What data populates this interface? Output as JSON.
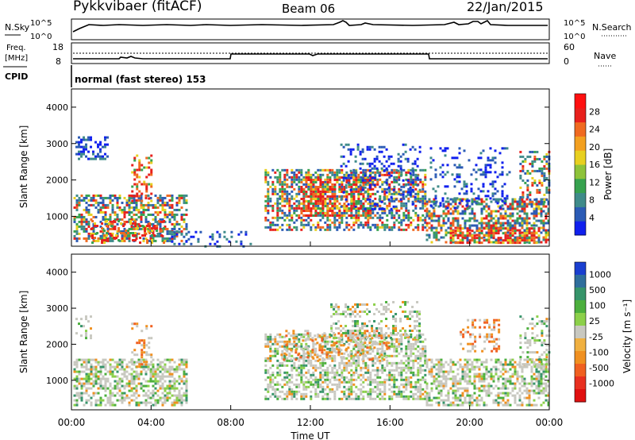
{
  "header": {
    "station": "Pykkvibaer (fitACF)",
    "beam": "Beam 06",
    "date": "22/Jan/2015"
  },
  "noise_panel": {
    "left_label": "N.Sky",
    "right_label": "N.Search",
    "ticks": [
      "10^5",
      "10^0"
    ]
  },
  "freq_panel": {
    "left_label_line1": "Freq.",
    "left_label_line2": "[MHz]",
    "right_label": "Nave",
    "left_ticks": [
      "18",
      "8"
    ],
    "right_ticks": [
      "60",
      "0"
    ]
  },
  "cpid": {
    "label": "CPID",
    "mode": "normal (fast stereo) 153"
  },
  "chart_data": [
    {
      "type": "heatmap",
      "title": "",
      "ylabel": "Slant Range [km]",
      "ylim": [
        180,
        4500
      ],
      "yticks": [
        "1000",
        "2000",
        "3000",
        "4000"
      ],
      "colorbar": {
        "label": "Power [dB]",
        "ticks": [
          "4",
          "8",
          "12",
          "16",
          "20",
          "24",
          "28"
        ],
        "colors": [
          "#1020ee",
          "#2b5bb5",
          "#3f8b8a",
          "#37a24f",
          "#8ec33a",
          "#e8d020",
          "#f3a020",
          "#f06a20",
          "#e8201c",
          "#ff1010"
        ]
      },
      "regions": [
        {
          "x": [
            0.2,
            5.8
          ],
          "y": [
            300,
            1600
          ],
          "level": "mixed"
        },
        {
          "x": [
            9.7,
            17.8
          ],
          "y": [
            600,
            2300
          ],
          "level": "high"
        },
        {
          "x": [
            17.8,
            24.0
          ],
          "y": [
            300,
            2800
          ],
          "level": "mixed"
        }
      ]
    },
    {
      "type": "heatmap",
      "title": "",
      "ylabel": "Slant Range [km]",
      "ylim": [
        180,
        4500
      ],
      "yticks": [
        "1000",
        "2000",
        "3000",
        "4000"
      ],
      "colorbar": {
        "label": "Velocity [m s⁻¹]",
        "ticks": [
          "1000",
          "500",
          "100",
          "25",
          "-25",
          "-100",
          "-500",
          "-1000"
        ],
        "colors": [
          "#1a3fd0",
          "#2f6e9c",
          "#36946a",
          "#4caf3d",
          "#8cd04a",
          "#c8c8c0",
          "#f0b040",
          "#f09020",
          "#f06020",
          "#e83020",
          "#e01010"
        ]
      }
    }
  ],
  "time_axis": {
    "label": "Time UT",
    "ticks": [
      "00:00",
      "04:00",
      "08:00",
      "12:00",
      "16:00",
      "20:00",
      "00:00"
    ]
  }
}
